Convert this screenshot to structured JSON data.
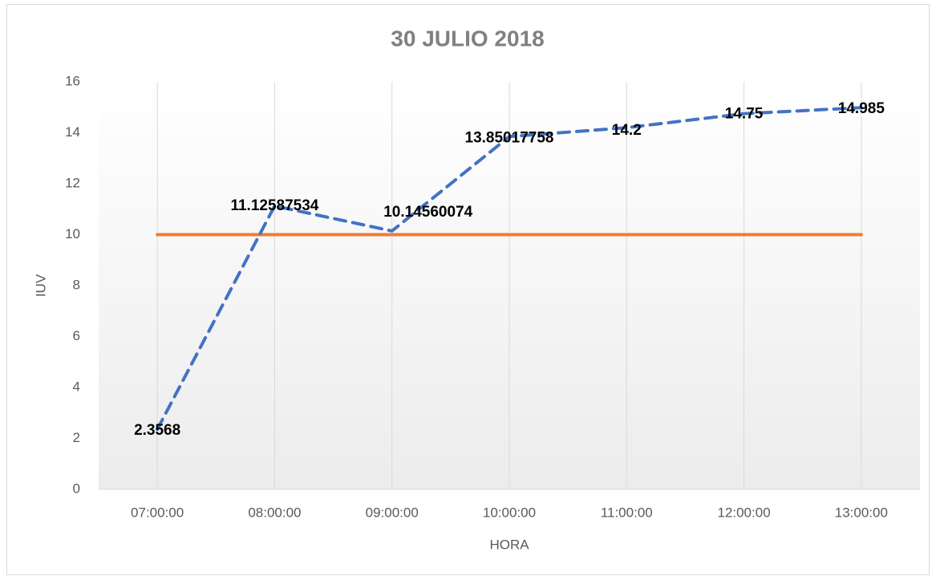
{
  "chart_data": {
    "type": "line",
    "title": "30 JULIO 2018",
    "x_label": "HORA",
    "y_label": "IUV",
    "categories": [
      "07:00:00",
      "08:00:00",
      "09:00:00",
      "10:00:00",
      "11:00:00",
      "12:00:00",
      "13:00:00"
    ],
    "series": [
      {
        "color": "#4472c4",
        "dashed": true,
        "data_labels": true,
        "values": [
          2.3568,
          11.12587534,
          10.14560074,
          13.85017758,
          14.2,
          14.75,
          14.985
        ]
      },
      {
        "color": "#ed7d31",
        "dashed": false,
        "data_labels": false,
        "values": [
          10,
          10,
          10,
          10,
          10,
          10,
          10
        ]
      }
    ],
    "ylim": [
      0,
      16
    ],
    "yticks": [
      0,
      2,
      4,
      6,
      8,
      10,
      12,
      14,
      16
    ],
    "grid": "x"
  }
}
